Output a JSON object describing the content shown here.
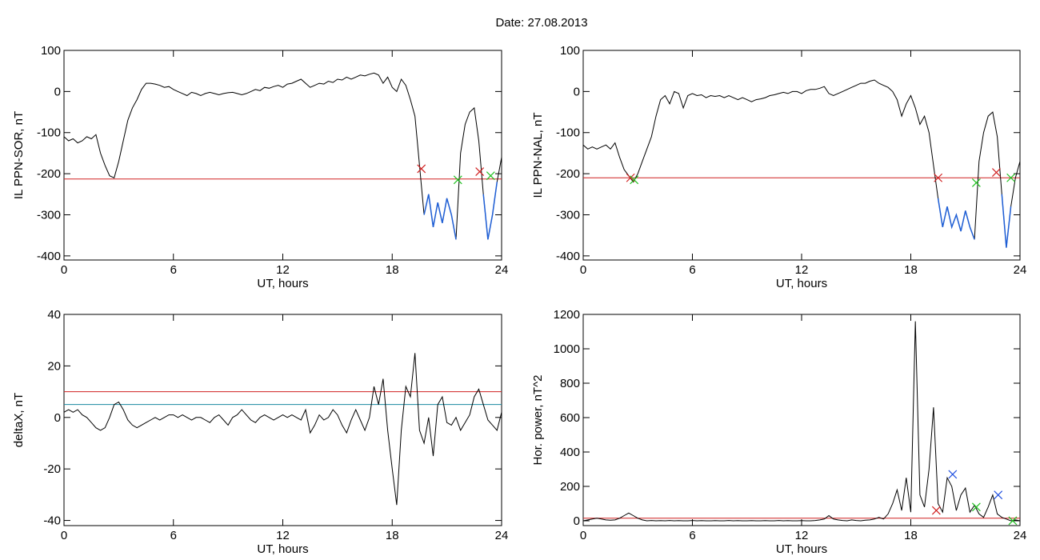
{
  "title": "Date:  27.08.2013",
  "chart_data": [
    {
      "type": "line",
      "ylabel": "IL PPN-SOR, nT",
      "xlabel": "UT, hours",
      "color": "#000000",
      "below_color": "#1f5fd6",
      "x": [
        0,
        0.25,
        0.5,
        0.75,
        1,
        1.25,
        1.5,
        1.75,
        2,
        2.25,
        2.5,
        2.75,
        3,
        3.25,
        3.5,
        3.75,
        4,
        4.25,
        4.5,
        4.75,
        5,
        5.25,
        5.5,
        5.75,
        6,
        6.25,
        6.5,
        6.75,
        7,
        7.25,
        7.5,
        7.75,
        8,
        8.25,
        8.5,
        8.75,
        9,
        9.25,
        9.5,
        9.75,
        10,
        10.25,
        10.5,
        10.75,
        11,
        11.25,
        11.5,
        11.75,
        12,
        12.25,
        12.5,
        12.75,
        13,
        13.25,
        13.5,
        13.75,
        14,
        14.25,
        14.5,
        14.75,
        15,
        15.25,
        15.5,
        15.75,
        16,
        16.25,
        16.5,
        16.75,
        17,
        17.25,
        17.5,
        17.75,
        18,
        18.25,
        18.5,
        18.75,
        19,
        19.25,
        19.5,
        19.75,
        20,
        20.25,
        20.5,
        20.75,
        21,
        21.25,
        21.5,
        21.75,
        22,
        22.25,
        22.5,
        22.75,
        23,
        23.25,
        23.5,
        23.75,
        24
      ],
      "values": [
        -110,
        -120,
        -115,
        -125,
        -120,
        -110,
        -115,
        -105,
        -150,
        -180,
        -205,
        -210,
        -170,
        -120,
        -70,
        -40,
        -20,
        5,
        20,
        20,
        18,
        15,
        10,
        12,
        5,
        0,
        -5,
        -10,
        -2,
        -5,
        -10,
        -5,
        -2,
        -5,
        -8,
        -5,
        -3,
        -2,
        -5,
        -8,
        -5,
        0,
        5,
        2,
        10,
        8,
        12,
        15,
        10,
        18,
        20,
        25,
        30,
        20,
        10,
        15,
        20,
        18,
        25,
        22,
        30,
        28,
        35,
        30,
        35,
        40,
        38,
        42,
        45,
        40,
        20,
        35,
        10,
        0,
        30,
        15,
        -20,
        -60,
        -180,
        -300,
        -250,
        -330,
        -270,
        -320,
        -260,
        -300,
        -360,
        -150,
        -80,
        -50,
        -40,
        -120,
        -250,
        -360,
        -300,
        -220,
        -160
      ],
      "xlim": [
        0,
        24
      ],
      "xticks": [
        0,
        6,
        12,
        18,
        24
      ],
      "ylim": [
        -410,
        100
      ],
      "yticks": [
        100,
        0,
        -100,
        -200,
        -300,
        -400
      ],
      "thresholds": [
        {
          "value": -213,
          "color": "#d02020"
        }
      ],
      "markers": [
        {
          "x": 19.6,
          "y": -188,
          "color": "#d02020"
        },
        {
          "x": 21.6,
          "y": -215,
          "color": "#20c020"
        },
        {
          "x": 22.8,
          "y": -195,
          "color": "#d02020"
        },
        {
          "x": 23.4,
          "y": -205,
          "color": "#20c020"
        }
      ]
    },
    {
      "type": "line",
      "ylabel": "IL PPN-NAL, nT",
      "xlabel": "UT, hours",
      "color": "#000000",
      "below_color": "#1f5fd6",
      "x": [
        0,
        0.25,
        0.5,
        0.75,
        1,
        1.25,
        1.5,
        1.75,
        2,
        2.25,
        2.5,
        2.75,
        3,
        3.25,
        3.5,
        3.75,
        4,
        4.25,
        4.5,
        4.75,
        5,
        5.25,
        5.5,
        5.75,
        6,
        6.25,
        6.5,
        6.75,
        7,
        7.25,
        7.5,
        7.75,
        8,
        8.25,
        8.5,
        8.75,
        9,
        9.25,
        9.5,
        9.75,
        10,
        10.25,
        10.5,
        10.75,
        11,
        11.25,
        11.5,
        11.75,
        12,
        12.25,
        12.5,
        12.75,
        13,
        13.25,
        13.5,
        13.75,
        14,
        14.25,
        14.5,
        14.75,
        15,
        15.25,
        15.5,
        15.75,
        16,
        16.25,
        16.5,
        16.75,
        17,
        17.25,
        17.5,
        17.75,
        18,
        18.25,
        18.5,
        18.75,
        19,
        19.25,
        19.5,
        19.75,
        20,
        20.25,
        20.5,
        20.75,
        21,
        21.25,
        21.5,
        21.75,
        22,
        22.25,
        22.5,
        22.75,
        23,
        23.25,
        23.5,
        23.75,
        24
      ],
      "values": [
        -130,
        -140,
        -135,
        -140,
        -135,
        -130,
        -140,
        -125,
        -160,
        -190,
        -205,
        -220,
        -200,
        -170,
        -140,
        -110,
        -60,
        -20,
        -10,
        -30,
        0,
        -5,
        -40,
        -10,
        -5,
        -10,
        -8,
        -15,
        -10,
        -12,
        -10,
        -15,
        -10,
        -15,
        -20,
        -15,
        -20,
        -25,
        -20,
        -18,
        -15,
        -10,
        -8,
        -5,
        -2,
        -5,
        0,
        0,
        -5,
        2,
        5,
        5,
        8,
        12,
        -5,
        -10,
        -5,
        0,
        5,
        10,
        15,
        20,
        20,
        25,
        28,
        20,
        15,
        10,
        0,
        -20,
        -60,
        -30,
        -10,
        -40,
        -80,
        -60,
        -100,
        -180,
        -260,
        -330,
        -280,
        -330,
        -300,
        -340,
        -290,
        -330,
        -360,
        -170,
        -100,
        -60,
        -50,
        -110,
        -250,
        -380,
        -280,
        -210,
        -170
      ],
      "xlim": [
        0,
        24
      ],
      "xticks": [
        0,
        6,
        12,
        18,
        24
      ],
      "ylim": [
        -410,
        100
      ],
      "yticks": [
        100,
        0,
        -100,
        -200,
        -300,
        -400
      ],
      "thresholds": [
        {
          "value": -210,
          "color": "#d02020"
        }
      ],
      "markers": [
        {
          "x": 2.6,
          "y": -210,
          "color": "#d02020"
        },
        {
          "x": 2.8,
          "y": -215,
          "color": "#20c020"
        },
        {
          "x": 19.5,
          "y": -210,
          "color": "#d02020"
        },
        {
          "x": 21.6,
          "y": -222,
          "color": "#20c020"
        },
        {
          "x": 22.7,
          "y": -197,
          "color": "#d02020"
        },
        {
          "x": 23.5,
          "y": -210,
          "color": "#20c020"
        }
      ]
    },
    {
      "type": "line",
      "ylabel": "deltaX, nT",
      "xlabel": "UT, hours",
      "color": "#000000",
      "x": [
        0,
        0.25,
        0.5,
        0.75,
        1,
        1.25,
        1.5,
        1.75,
        2,
        2.25,
        2.5,
        2.75,
        3,
        3.25,
        3.5,
        3.75,
        4,
        4.25,
        4.5,
        4.75,
        5,
        5.25,
        5.5,
        5.75,
        6,
        6.25,
        6.5,
        6.75,
        7,
        7.25,
        7.5,
        7.75,
        8,
        8.25,
        8.5,
        8.75,
        9,
        9.25,
        9.5,
        9.75,
        10,
        10.25,
        10.5,
        10.75,
        11,
        11.25,
        11.5,
        11.75,
        12,
        12.25,
        12.5,
        12.75,
        13,
        13.25,
        13.5,
        13.75,
        14,
        14.25,
        14.5,
        14.75,
        15,
        15.25,
        15.5,
        15.75,
        16,
        16.25,
        16.5,
        16.75,
        17,
        17.25,
        17.5,
        17.75,
        18,
        18.25,
        18.5,
        18.75,
        19,
        19.25,
        19.5,
        19.75,
        20,
        20.25,
        20.5,
        20.75,
        21,
        21.25,
        21.5,
        21.75,
        22,
        22.25,
        22.5,
        22.75,
        23,
        23.25,
        23.5,
        23.75,
        24
      ],
      "values": [
        2,
        3,
        2,
        3,
        1,
        0,
        -2,
        -4,
        -5,
        -4,
        0,
        5,
        6,
        3,
        -1,
        -3,
        -4,
        -3,
        -2,
        -1,
        0,
        -1,
        0,
        1,
        1,
        0,
        1,
        0,
        -1,
        0,
        0,
        -1,
        -2,
        0,
        1,
        -1,
        -3,
        0,
        1,
        3,
        1,
        -1,
        -2,
        0,
        1,
        0,
        -1,
        0,
        1,
        0,
        1,
        0,
        -1,
        3,
        -6,
        -3,
        1,
        -1,
        0,
        3,
        1,
        -3,
        -6,
        -1,
        3,
        -1,
        -5,
        0,
        12,
        5,
        15,
        -5,
        -20,
        -34,
        -5,
        12,
        8,
        25,
        -5,
        -10,
        0,
        -15,
        5,
        8,
        -2,
        -3,
        0,
        -5,
        -2,
        1,
        8,
        11,
        5,
        -1,
        -3,
        -5,
        2
      ],
      "xlim": [
        0,
        24
      ],
      "xticks": [
        0,
        6,
        12,
        18,
        24
      ],
      "ylim": [
        -42,
        40
      ],
      "yticks": [
        40,
        20,
        0,
        -20,
        -40
      ],
      "thresholds": [
        {
          "value": 10,
          "color": "#d02020"
        },
        {
          "value": 5,
          "color": "#1a8aa0"
        }
      ],
      "markers": []
    },
    {
      "type": "line",
      "ylabel": "Hor. power, nT^2",
      "xlabel": "UT, hours",
      "color": "#000000",
      "x": [
        0,
        0.25,
        0.5,
        0.75,
        1,
        1.25,
        1.5,
        1.75,
        2,
        2.25,
        2.5,
        2.75,
        3,
        3.25,
        3.5,
        3.75,
        4,
        4.25,
        4.5,
        4.75,
        5,
        5.25,
        5.5,
        5.75,
        6,
        6.25,
        6.5,
        6.75,
        7,
        7.25,
        7.5,
        7.75,
        8,
        8.25,
        8.5,
        8.75,
        9,
        9.25,
        9.5,
        9.75,
        10,
        10.25,
        10.5,
        10.75,
        11,
        11.25,
        11.5,
        11.75,
        12,
        12.25,
        12.5,
        12.75,
        13,
        13.25,
        13.5,
        13.75,
        14,
        14.25,
        14.5,
        14.75,
        15,
        15.25,
        15.5,
        15.75,
        16,
        16.25,
        16.5,
        16.75,
        17,
        17.25,
        17.5,
        17.75,
        18,
        18.25,
        18.5,
        18.75,
        19,
        19.25,
        19.5,
        19.75,
        20,
        20.25,
        20.5,
        20.75,
        21,
        21.25,
        21.5,
        21.75,
        22,
        22.25,
        22.5,
        22.75,
        23,
        23.25,
        23.5,
        23.75,
        24
      ],
      "values": [
        0,
        5,
        10,
        15,
        10,
        5,
        3,
        5,
        15,
        30,
        45,
        30,
        15,
        5,
        0,
        2,
        0,
        1,
        0,
        2,
        0,
        1,
        0,
        0,
        2,
        0,
        1,
        0,
        0,
        1,
        0,
        0,
        2,
        0,
        1,
        0,
        0,
        1,
        0,
        0,
        1,
        0,
        0,
        2,
        0,
        1,
        0,
        0,
        1,
        0,
        0,
        2,
        5,
        10,
        30,
        10,
        5,
        2,
        0,
        5,
        2,
        0,
        3,
        5,
        10,
        20,
        10,
        40,
        100,
        180,
        60,
        250,
        50,
        1160,
        150,
        80,
        300,
        660,
        100,
        50,
        250,
        200,
        60,
        150,
        190,
        50,
        90,
        40,
        20,
        80,
        150,
        40,
        20,
        10,
        0,
        5,
        0
      ],
      "xlim": [
        0,
        24
      ],
      "xticks": [
        0,
        6,
        12,
        18,
        24
      ],
      "ylim": [
        -28,
        1200
      ],
      "yticks": [
        1200,
        1000,
        800,
        600,
        400,
        200,
        0
      ],
      "thresholds": [
        {
          "value": 15,
          "color": "#d02020"
        }
      ],
      "markers": [
        {
          "x": 19.4,
          "y": 60,
          "color": "#d02020"
        },
        {
          "x": 20.3,
          "y": 270,
          "color": "#2050e0"
        },
        {
          "x": 21.6,
          "y": 80,
          "color": "#20c020"
        },
        {
          "x": 22.8,
          "y": 150,
          "color": "#2050e0"
        },
        {
          "x": 23.6,
          "y": 0,
          "color": "#20c020"
        }
      ]
    }
  ]
}
